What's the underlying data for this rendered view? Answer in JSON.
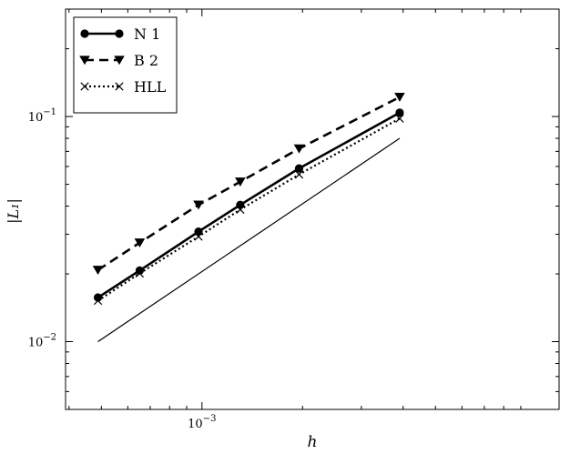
{
  "chart_data": {
    "type": "line",
    "xlabel": "h",
    "ylabel": "|L₁|",
    "xscale": "log",
    "yscale": "log",
    "xlim": [
      0.0003906,
      0.01171875
    ],
    "ylim": [
      0.005,
      0.3
    ],
    "xticks": [
      {
        "value": 0.001,
        "base": "10",
        "exp": "−3"
      }
    ],
    "yticks": [
      {
        "value": 0.01,
        "base": "10",
        "exp": "−2"
      },
      {
        "value": 0.1,
        "base": "10",
        "exp": "−1"
      }
    ],
    "grid": false,
    "legend_position": "top-left",
    "series": [
      {
        "name": "N 1",
        "marker": "circle",
        "dash": "solid",
        "x": [
          0.00048828,
          0.00065104,
          0.00097656,
          0.00130208,
          0.00195313,
          0.00390625
        ],
        "y": [
          0.0157,
          0.0207,
          0.0308,
          0.0405,
          0.0588,
          0.104
        ]
      },
      {
        "name": "B 2",
        "marker": "triangle-down",
        "dash": "dashed",
        "x": [
          0.00048828,
          0.00065104,
          0.00097656,
          0.00130208,
          0.00195313,
          0.00390625
        ],
        "y": [
          0.0208,
          0.0275,
          0.0405,
          0.0513,
          0.072,
          0.122
        ]
      },
      {
        "name": "HLL",
        "marker": "x",
        "dash": "dotted",
        "x": [
          0.00048828,
          0.00065104,
          0.00097656,
          0.00130208,
          0.00195313,
          0.00390625
        ],
        "y": [
          0.0152,
          0.0201,
          0.0293,
          0.0386,
          0.0553,
          0.098
        ]
      },
      {
        "marker": "none",
        "dash": "solid-thin",
        "x": [
          0.00048828,
          0.00390625
        ],
        "y": [
          0.01,
          0.08
        ]
      }
    ]
  }
}
